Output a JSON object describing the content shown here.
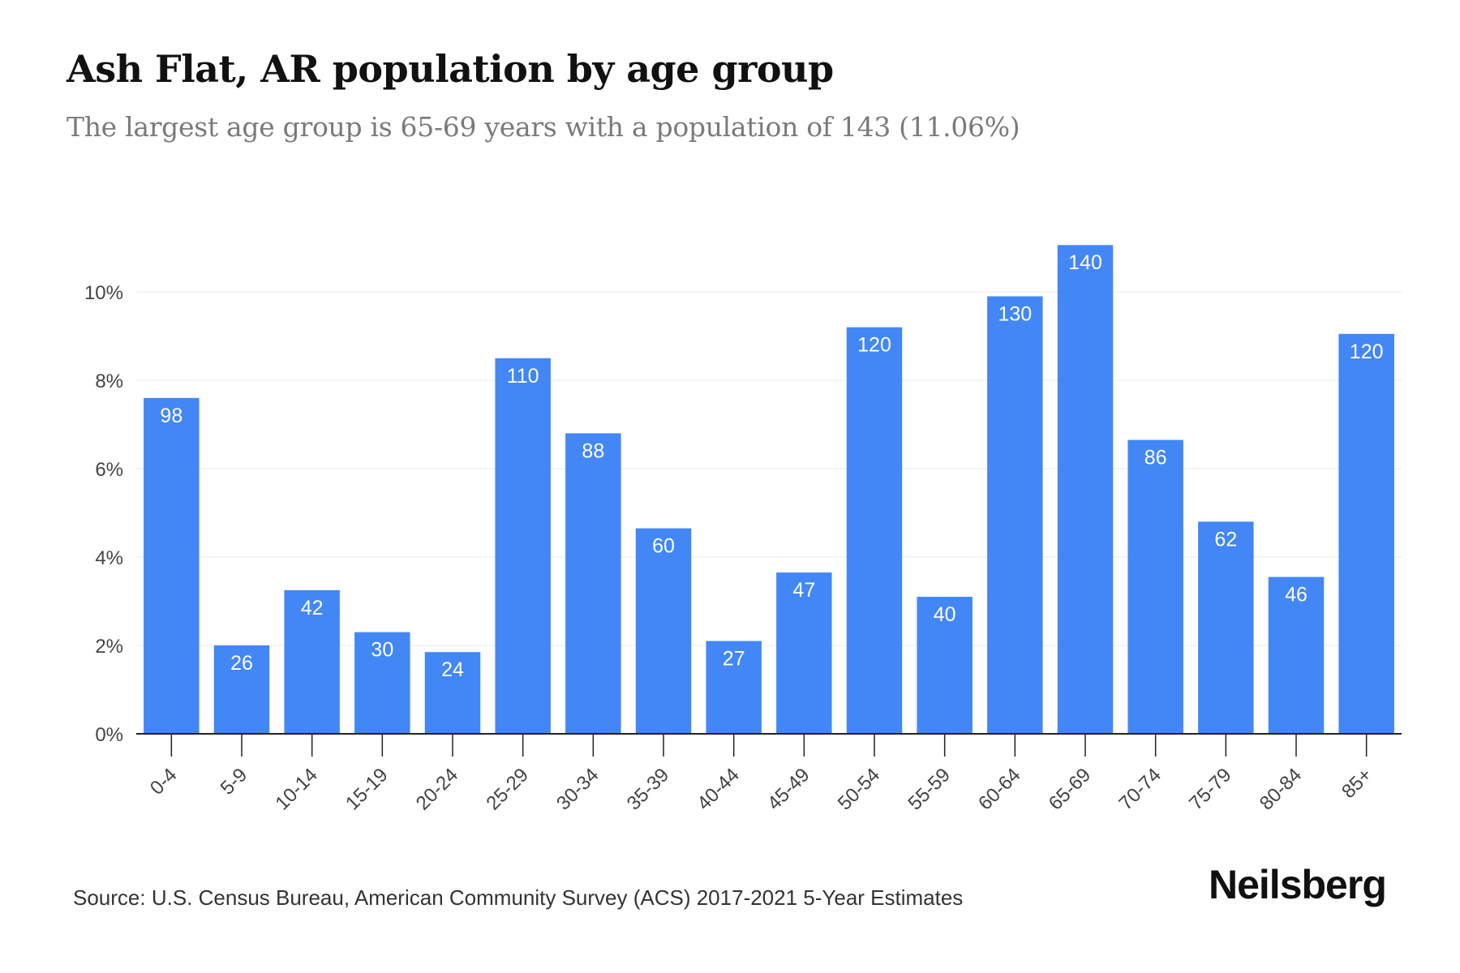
{
  "header": {
    "title": "Ash Flat, AR population by age group",
    "subtitle": "The largest age group is 65-69 years with a population of 143 (11.06%)"
  },
  "footer": {
    "source": "Source: U.S. Census Bureau, American Community Survey (ACS) 2017-2021 5-Year Estimates",
    "brand": "Neilsberg"
  },
  "colors": {
    "bar": "#4287f5",
    "bar_label": "#ffffff",
    "grid": "#eeeeee",
    "axis": "#222222",
    "tick_text": "#444444"
  },
  "chart_data": {
    "type": "bar",
    "title": "Ash Flat, AR population by age group",
    "subtitle": "The largest age group is 65-69 years with a population of 143 (11.06%)",
    "xlabel": "",
    "ylabel": "",
    "categories": [
      "0-4",
      "5-9",
      "10-14",
      "15-19",
      "20-24",
      "25-29",
      "30-34",
      "35-39",
      "40-44",
      "45-49",
      "50-54",
      "55-59",
      "60-64",
      "65-69",
      "70-74",
      "75-79",
      "80-84",
      "85+"
    ],
    "values_percent": [
      7.6,
      2.0,
      3.25,
      2.3,
      1.85,
      8.5,
      6.8,
      4.65,
      2.1,
      3.65,
      9.2,
      3.1,
      9.9,
      11.06,
      6.65,
      4.8,
      3.55,
      9.05
    ],
    "data_labels": [
      "98",
      "26",
      "42",
      "30",
      "24",
      "110",
      "88",
      "60",
      "27",
      "47",
      "120",
      "40",
      "130",
      "140",
      "86",
      "62",
      "46",
      "120"
    ],
    "ylim": [
      0,
      11.06
    ],
    "yticks": [
      0,
      2,
      4,
      6,
      8,
      10
    ],
    "ytick_labels": [
      "0%",
      "2%",
      "4%",
      "6%",
      "8%",
      "10%"
    ],
    "grid": true,
    "legend": "none"
  }
}
